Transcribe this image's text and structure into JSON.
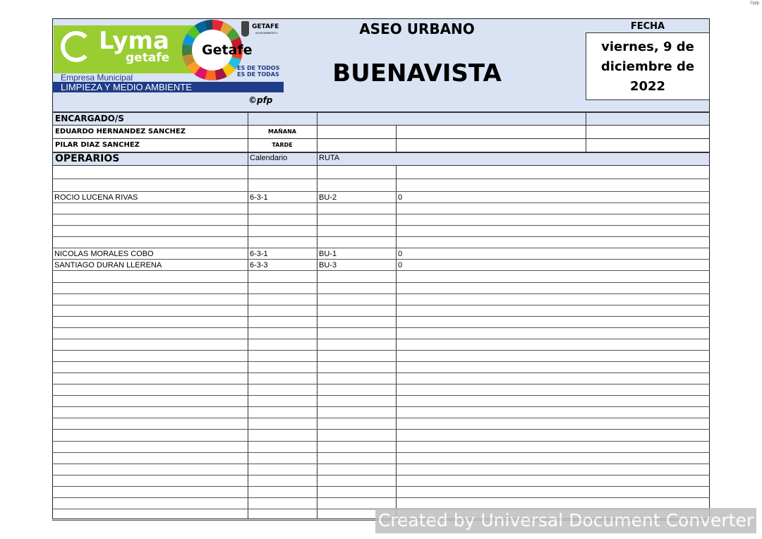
{
  "corner_mark": "©pfp",
  "logo": {
    "brand": "Lyma",
    "brand_sub": "getafe",
    "company_type": "Empresa Municipal",
    "company_desc": "LIMPIEZA Y MEDIO AMBIENTE",
    "getafe_badge": "Getafe",
    "council": "GETAFE",
    "council_sub": "AYUNTAMIENTO",
    "slogan_1": "ES DE TODOS",
    "slogan_2": "ES DE TODAS",
    "copyright": "©pfp",
    "colors": {
      "lime": "#9acd32",
      "navy": "#1f3c88"
    }
  },
  "header": {
    "department": "ASEO URBANO",
    "zone": "BUENAVISTA",
    "date_label": "FECHA",
    "date_line1": "viernes, 9 de",
    "date_line2": "diciembre de",
    "date_line3": "2022"
  },
  "encargados": {
    "title": "ENCARGADO/S",
    "rows": [
      {
        "name": "EDUARDO HERNANDEZ SANCHEZ",
        "turno": "MAÑANA"
      },
      {
        "name": "PILAR DIAZ SANCHEZ",
        "turno": "TARDE"
      }
    ]
  },
  "operarios": {
    "title": "OPERARIOS",
    "col_calendario": "Calendario",
    "col_ruta": "RUTA",
    "rows": [
      {},
      {},
      {
        "name": "ROCIO LUCENA RIVAS",
        "calendario": "6-3-1",
        "ruta": "BU-2",
        "valor": "0"
      },
      {},
      {},
      {},
      {},
      {
        "name": "NICOLAS MORALES COBO",
        "calendario": "6-3-1",
        "ruta": "BU-1",
        "valor": "0"
      },
      {
        "name": "SANTIAGO DURAN LLERENA",
        "calendario": "6-3-3",
        "ruta": "BU-3",
        "valor": "0"
      },
      {},
      {},
      {},
      {},
      {},
      {},
      {},
      {},
      {},
      {},
      {},
      {},
      {},
      {},
      {},
      {},
      {},
      {},
      {},
      {},
      {},
      {}
    ]
  },
  "watermark": "Created by Universal Document Converter"
}
